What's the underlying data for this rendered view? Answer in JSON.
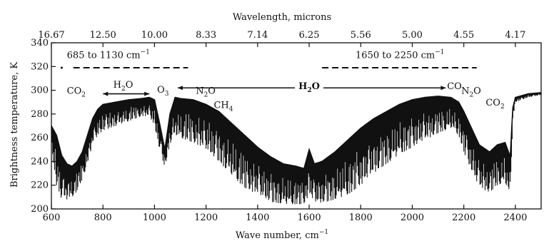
{
  "chart_data": {
    "type": "line",
    "title": "",
    "xlabel": "Wave number, cm",
    "xlabel_sup": "−1",
    "ylabel": "Brightness temperature, K",
    "top_xlabel": "Wavelength, microns",
    "xlim": [
      600,
      2500
    ],
    "ylim": [
      200,
      340
    ],
    "x_ticks": [
      600,
      800,
      1000,
      1200,
      1400,
      1600,
      1800,
      2000,
      2200,
      2400
    ],
    "x_tick_labels": [
      "600",
      "800",
      "1000",
      "1200",
      "1400",
      "1600",
      "1800",
      "2000",
      "2200",
      "2400"
    ],
    "y_ticks": [
      200,
      220,
      240,
      260,
      280,
      300,
      320,
      340
    ],
    "y_tick_labels": [
      "200",
      "220",
      "240",
      "260",
      "280",
      "300",
      "320",
      "340"
    ],
    "top_ticks": [
      600,
      800,
      1000,
      1200,
      1400,
      1600,
      1800,
      2000,
      2200,
      2400
    ],
    "top_tick_labels": [
      "16.67",
      "12.50",
      "10.00",
      "8.33",
      "7.14",
      "6.25",
      "5.56",
      "5.00",
      "4.55",
      "4.17"
    ],
    "grid": false,
    "series": [
      {
        "x": [
          600,
          620,
          640,
          660,
          680,
          700,
          720,
          740,
          760,
          780,
          800,
          850,
          900,
          950,
          980,
          1000,
          1020,
          1040,
          1060,
          1080,
          1100,
          1150,
          1200,
          1250,
          1300,
          1350,
          1400,
          1450,
          1500,
          1550,
          1580,
          1600,
          1620,
          1650,
          1700,
          1750,
          1800,
          1850,
          1900,
          1950,
          2000,
          2050,
          2100,
          2150,
          2180,
          2200,
          2230,
          2260,
          2300,
          2330,
          2360,
          2380,
          2390,
          2400,
          2450,
          2500
        ],
        "upper": [
          270,
          262,
          245,
          238,
          236,
          240,
          248,
          262,
          276,
          284,
          288,
          290,
          292,
          293,
          294,
          292,
          272,
          250,
          280,
          294,
          293,
          292,
          288,
          282,
          272,
          262,
          252,
          244,
          238,
          236,
          234,
          250,
          238,
          240,
          248,
          258,
          268,
          276,
          282,
          288,
          292,
          294,
          295,
          294,
          290,
          282,
          268,
          254,
          248,
          254,
          256,
          244,
          285,
          294,
          297,
          298
        ],
        "lower": [
          250,
          220,
          208,
          208,
          210,
          215,
          225,
          238,
          255,
          262,
          266,
          270,
          274,
          278,
          278,
          270,
          250,
          235,
          255,
          262,
          260,
          256,
          250,
          240,
          228,
          218,
          212,
          206,
          204,
          204,
          204,
          212,
          205,
          205,
          208,
          212,
          220,
          230,
          238,
          246,
          252,
          258,
          264,
          268,
          262,
          248,
          232,
          218,
          214,
          220,
          222,
          210,
          275,
          290,
          294,
          296
        ]
      }
    ],
    "annotations": [
      {
        "x": 660,
        "y": 297,
        "text": "CO",
        "sub": "2"
      },
      {
        "x": 840,
        "y": 302,
        "text": "H",
        "sub": "2",
        "text2": "O"
      },
      {
        "x": 1010,
        "y": 298,
        "text": "O",
        "sub": "3"
      },
      {
        "x": 1160,
        "y": 297,
        "text": "N",
        "sub": "2",
        "text2": "O"
      },
      {
        "x": 1230,
        "y": 285,
        "text": "CH",
        "sub": "4"
      },
      {
        "x": 1600,
        "y": 301,
        "text": "H",
        "sub": "2",
        "text2": "O"
      },
      {
        "x": 2135,
        "y": 301,
        "text": "CO",
        "sub": ""
      },
      {
        "x": 2190,
        "y": 297,
        "text": "N",
        "sub": "2",
        "text2": "O"
      },
      {
        "x": 2285,
        "y": 287,
        "text": "CO",
        "sub": "2"
      },
      {
        "x": 660,
        "y": 327,
        "text": "685 to 1130 cm",
        "sup": "−1"
      },
      {
        "x": 1780,
        "y": 327,
        "text": "1650 to 2250 cm",
        "sup": "−1"
      }
    ],
    "range_bars": [
      {
        "x1": 685,
        "x2": 1130,
        "y": 319
      },
      {
        "x1": 1650,
        "x2": 2250,
        "y": 319
      }
    ],
    "arrows": [
      {
        "x1": 800,
        "x2": 980,
        "y": 297,
        "both": true
      },
      {
        "x1": 1090,
        "x2": 2130,
        "y": 302,
        "both": true
      }
    ]
  }
}
